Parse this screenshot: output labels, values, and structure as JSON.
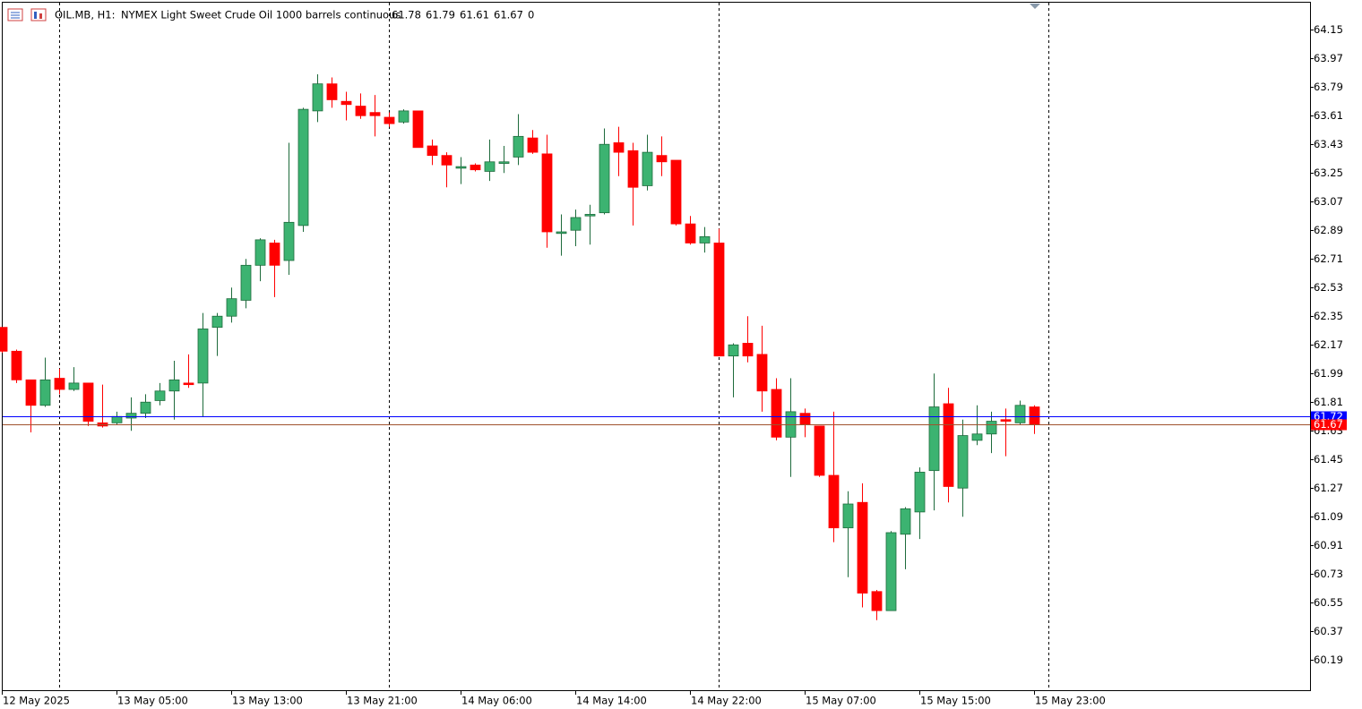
{
  "chart_data": {
    "type": "candlestick",
    "symbol": "OIL.MB, H1:",
    "description": "NYMEX Light Sweet Crude Oil 1000 barrels continuous",
    "volume": 0,
    "categories": [
      "12 May 2025",
      null,
      null,
      null,
      null,
      null,
      null,
      null,
      "13 May 05:00",
      null,
      null,
      null,
      null,
      null,
      null,
      null,
      "13 May 13:00",
      null,
      null,
      null,
      null,
      null,
      null,
      null,
      "13 May 21:00",
      null,
      null,
      null,
      null,
      null,
      null,
      null,
      "14 May 06:00",
      null,
      null,
      null,
      null,
      null,
      null,
      null,
      "14 May 14:00",
      null,
      null,
      null,
      null,
      null,
      null,
      null,
      "14 May 22:00",
      null,
      null,
      null,
      null,
      null,
      null,
      null,
      "15 May 07:00",
      null,
      null,
      null,
      null,
      null,
      null,
      null,
      "15 May 15:00",
      null,
      null,
      null,
      null,
      null,
      null,
      null,
      "15 May 23:00"
    ],
    "open": [
      62.28,
      62.13,
      61.95,
      61.79,
      61.96,
      61.89,
      61.93,
      61.68,
      61.68,
      61.71,
      61.74,
      61.82,
      61.88,
      61.93,
      61.93,
      62.28,
      62.35,
      62.45,
      62.67,
      62.81,
      62.7,
      62.92,
      63.64,
      63.81,
      63.7,
      63.67,
      63.63,
      63.6,
      63.57,
      63.64,
      63.42,
      63.36,
      63.28,
      63.3,
      63.26,
      63.31,
      63.35,
      63.47,
      63.37,
      62.87,
      62.89,
      62.98,
      63.0,
      63.44,
      63.39,
      63.17,
      63.36,
      63.33,
      62.93,
      62.81,
      62.81,
      62.1,
      62.18,
      62.11,
      61.89,
      61.59,
      61.74,
      61.66,
      61.35,
      61.02,
      61.18,
      60.62,
      60.5,
      60.98,
      61.12,
      61.38,
      61.8,
      61.27,
      61.57,
      61.61,
      61.7,
      61.68,
      61.78
    ],
    "high": [
      62.28,
      62.14,
      61.95,
      62.09,
      62.02,
      62.03,
      61.93,
      61.92,
      61.75,
      61.84,
      61.86,
      61.93,
      62.07,
      62.11,
      62.37,
      62.37,
      62.53,
      62.71,
      62.84,
      62.83,
      63.44,
      63.66,
      63.87,
      63.85,
      63.76,
      63.75,
      63.74,
      63.63,
      63.65,
      63.64,
      63.46,
      63.38,
      63.35,
      63.31,
      63.46,
      63.42,
      63.62,
      63.52,
      63.49,
      62.99,
      63.02,
      63.05,
      63.53,
      63.54,
      63.44,
      63.49,
      63.48,
      63.33,
      62.98,
      62.91,
      62.9,
      62.18,
      62.35,
      62.29,
      61.96,
      61.96,
      61.77,
      61.66,
      61.75,
      61.25,
      61.3,
      60.63,
      61.0,
      61.15,
      61.4,
      61.99,
      61.9,
      61.7,
      61.79,
      61.75,
      61.77,
      61.82,
      61.79
    ],
    "low": [
      62.12,
      61.93,
      61.62,
      61.78,
      61.86,
      61.88,
      61.66,
      61.65,
      61.67,
      61.63,
      61.71,
      61.79,
      61.7,
      61.9,
      61.72,
      62.1,
      62.31,
      62.4,
      62.57,
      62.47,
      62.61,
      62.88,
      63.57,
      63.66,
      63.58,
      63.59,
      63.48,
      63.54,
      63.56,
      63.41,
      63.3,
      63.16,
      63.18,
      63.26,
      63.2,
      63.25,
      63.3,
      63.37,
      62.78,
      62.73,
      62.79,
      62.8,
      62.99,
      63.23,
      62.92,
      63.14,
      63.23,
      62.92,
      62.8,
      62.75,
      62.1,
      61.84,
      62.06,
      61.75,
      61.57,
      61.34,
      61.59,
      61.34,
      60.93,
      60.71,
      60.52,
      60.44,
      60.5,
      60.76,
      60.95,
      61.13,
      61.18,
      61.09,
      61.54,
      61.49,
      61.47,
      61.67,
      61.61
    ],
    "close": [
      62.13,
      61.95,
      61.79,
      61.95,
      61.89,
      61.93,
      61.69,
      61.66,
      61.72,
      61.74,
      61.81,
      61.88,
      61.95,
      61.92,
      62.27,
      62.35,
      62.46,
      62.67,
      62.83,
      62.67,
      62.94,
      63.65,
      63.81,
      63.71,
      63.68,
      63.61,
      63.61,
      63.56,
      63.64,
      63.41,
      63.36,
      63.3,
      63.29,
      63.27,
      63.32,
      63.32,
      63.48,
      63.38,
      62.88,
      62.88,
      62.97,
      62.99,
      63.43,
      63.38,
      63.16,
      63.38,
      63.32,
      62.93,
      62.81,
      62.85,
      62.1,
      62.17,
      62.1,
      61.88,
      61.59,
      61.75,
      61.67,
      61.35,
      61.02,
      61.17,
      60.61,
      60.5,
      60.99,
      61.14,
      61.37,
      61.78,
      61.28,
      61.6,
      61.61,
      61.69,
      61.69,
      61.79,
      61.67
    ],
    "up_color": "#3cb371",
    "down_color": "#ff0000",
    "ylim": [
      60.0,
      64.32
    ],
    "yticks": [
      64.15,
      63.97,
      63.79,
      63.61,
      63.43,
      63.25,
      63.07,
      62.89,
      62.71,
      62.53,
      62.35,
      62.17,
      61.99,
      61.81,
      61.63,
      61.45,
      61.27,
      61.09,
      60.91,
      60.73,
      60.55,
      60.37,
      60.19
    ],
    "ask": 61.72,
    "ask_color": "#0000ff",
    "bid": 61.67,
    "bid_color": "#a0522d",
    "bid_label_color": "#ff0000"
  }
}
